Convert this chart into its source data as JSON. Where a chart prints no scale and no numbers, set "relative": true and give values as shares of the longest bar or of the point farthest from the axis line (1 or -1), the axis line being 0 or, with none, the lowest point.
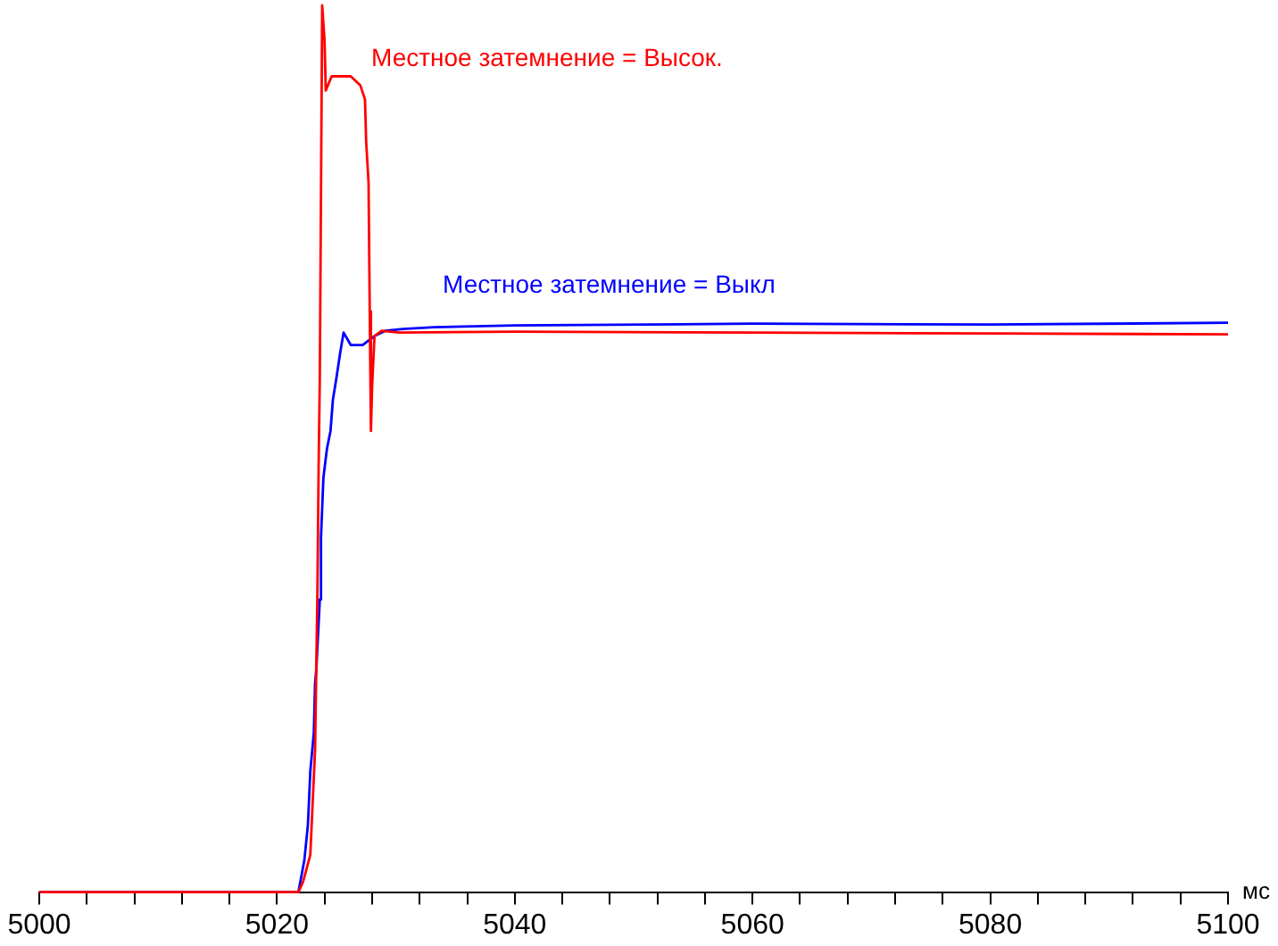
{
  "chart_data": {
    "type": "line",
    "relative": true,
    "xlabel": "мс",
    "xlim": [
      5000,
      5100
    ],
    "xticks": [
      5000,
      {
        "value": 5004,
        "label": null
      },
      {
        "value": 5008,
        "label": null
      },
      {
        "value": 5012,
        "label": null
      },
      {
        "value": 5016,
        "label": null
      },
      5020,
      {
        "value": 5024,
        "label": null
      },
      {
        "value": 5028,
        "label": null
      },
      {
        "value": 5032,
        "label": null
      },
      {
        "value": 5036,
        "label": null
      },
      5040,
      {
        "value": 5044,
        "label": null
      },
      {
        "value": 5048,
        "label": null
      },
      {
        "value": 5052,
        "label": null
      },
      {
        "value": 5056,
        "label": null
      },
      5060,
      {
        "value": 5064,
        "label": null
      },
      {
        "value": 5068,
        "label": null
      },
      {
        "value": 5072,
        "label": null
      },
      {
        "value": 5076,
        "label": null
      },
      5080,
      {
        "value": 5084,
        "label": null
      },
      {
        "value": 5088,
        "label": null
      },
      {
        "value": 5092,
        "label": null
      },
      {
        "value": 5096,
        "label": null
      },
      5100
    ],
    "marker": "none",
    "line_style": "solid",
    "series": [
      {
        "name": "Местное затемнение = Выкл",
        "color": "#0000ff",
        "x": [
          5000,
          5021.8,
          5022.3,
          5022.6,
          5022.8,
          5023.1,
          5023.2,
          5023.3,
          5023.6,
          5023.7,
          5023.9,
          5024.2,
          5024.5,
          5024.7,
          5025.0,
          5025.3,
          5025.6,
          5026.2,
          5027.2,
          5028.2,
          5029.1,
          5030.6,
          5033.2,
          5040,
          5060,
          5080,
          5100
        ],
        "values": [
          0,
          0,
          0.036,
          0.076,
          0.136,
          0.18,
          0.235,
          0.25,
          0.33,
          0.4,
          0.467,
          0.5,
          0.52,
          0.555,
          0.58,
          0.607,
          0.631,
          0.617,
          0.617,
          0.627,
          0.633,
          0.635,
          0.637,
          0.639,
          0.641,
          0.64,
          0.642
        ]
      },
      {
        "name": "Местное затемнение = Высок.",
        "color": "#ff0000",
        "x": [
          5000,
          5021.8,
          5022.2,
          5022.8,
          5023.2,
          5023.4,
          5023.5,
          5023.6,
          5023.8,
          5024.0,
          5024.1,
          5024.6,
          5026.2,
          5027.0,
          5027.4,
          5027.5,
          5027.7,
          5027.8,
          5027.9,
          5028.0,
          5028.2,
          5028.8,
          5030.3,
          5040,
          5060,
          5080,
          5100
        ],
        "values": [
          0,
          0,
          0.012,
          0.042,
          0.16,
          0.34,
          0.48,
          0.58,
          1,
          0.96,
          0.904,
          0.92,
          0.92,
          0.91,
          0.894,
          0.846,
          0.8,
          0.655,
          0.52,
          0.57,
          0.627,
          0.633,
          0.631,
          0.632,
          0.631,
          0.63,
          0.629
        ]
      }
    ]
  }
}
